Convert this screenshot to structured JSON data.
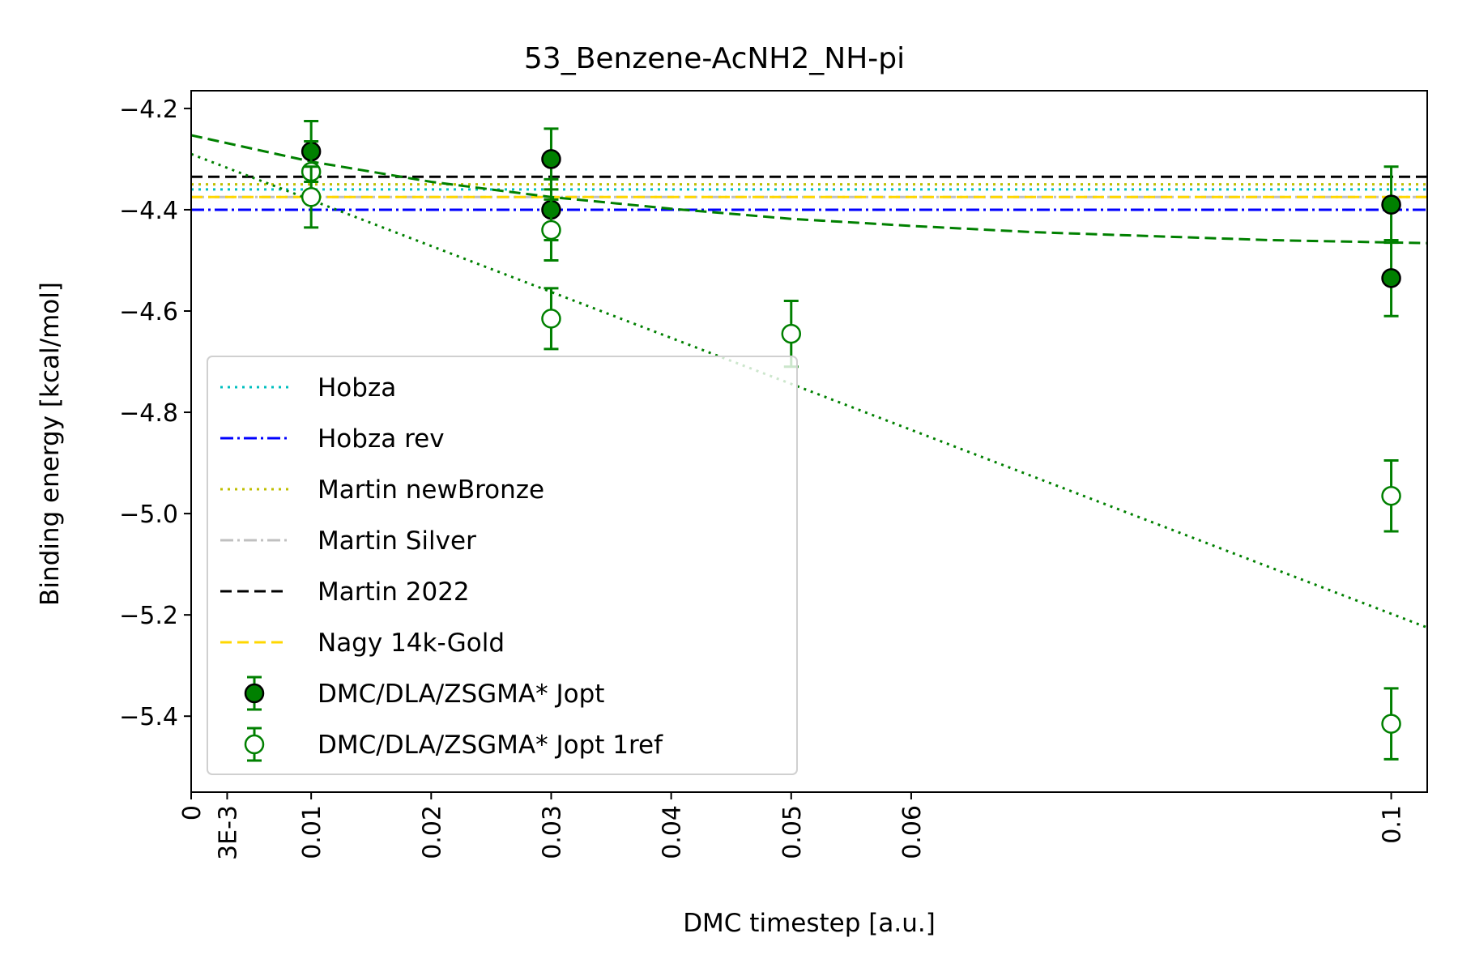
{
  "chart_data": {
    "type": "scatter",
    "title": "53_Benzene-AcNH2_NH-pi",
    "xlabel": "DMC timestep [a.u.]",
    "ylabel": "Binding energy [kcal/mol]",
    "xlim": [
      0,
      0.103
    ],
    "ylim": [
      -5.55,
      -4.165
    ],
    "x_ticks": [
      {
        "value": 0,
        "label": "0"
      },
      {
        "value": 0.003,
        "label": "3E-3"
      },
      {
        "value": 0.01,
        "label": "0.01"
      },
      {
        "value": 0.02,
        "label": "0.02"
      },
      {
        "value": 0.03,
        "label": "0.03"
      },
      {
        "value": 0.04,
        "label": "0.04"
      },
      {
        "value": 0.05,
        "label": "0.05"
      },
      {
        "value": 0.06,
        "label": "0.06"
      },
      {
        "value": 0.1,
        "label": "0.1"
      }
    ],
    "y_ticks": [
      {
        "value": -4.2,
        "label": "−4.2"
      },
      {
        "value": -4.4,
        "label": "−4.4"
      },
      {
        "value": -4.6,
        "label": "−4.6"
      },
      {
        "value": -4.8,
        "label": "−4.8"
      },
      {
        "value": -5.0,
        "label": "−5.0"
      },
      {
        "value": -5.2,
        "label": "−5.2"
      },
      {
        "value": -5.4,
        "label": "−5.4"
      }
    ],
    "grid": false,
    "legend_position": "lower-left",
    "reference_lines": [
      {
        "name": "Hobza",
        "value": -4.36,
        "color": "#00bfbf",
        "style": "dotted"
      },
      {
        "name": "Hobza rev",
        "value": -4.4,
        "color": "#0000ff",
        "style": "dashdot"
      },
      {
        "name": "Martin newBronze",
        "value": -4.35,
        "color": "#bfbf00",
        "style": "dotted"
      },
      {
        "name": "Martin Silver",
        "value": -4.375,
        "color": "#c0c0c0",
        "style": "dashdot"
      },
      {
        "name": "Martin 2022",
        "value": -4.335,
        "color": "#000000",
        "style": "dashed"
      },
      {
        "name": "Nagy 14k-Gold",
        "value": -4.375,
        "color": "#ffd700",
        "style": "dashed"
      }
    ],
    "series": [
      {
        "name": "DMC/DLA/ZSGMA* Jopt",
        "marker": "filled-circle",
        "color": "#008000",
        "points": [
          {
            "x": 0.01,
            "y": -4.285,
            "err": 0.06
          },
          {
            "x": 0.03,
            "y": -4.3,
            "err": 0.06
          },
          {
            "x": 0.03,
            "y": -4.4,
            "err": 0.06
          },
          {
            "x": 0.1,
            "y": -4.39,
            "err": 0.075
          },
          {
            "x": 0.1,
            "y": -4.535,
            "err": 0.075
          }
        ]
      },
      {
        "name": "DMC/DLA/ZSGMA* Jopt 1ref",
        "marker": "open-circle",
        "color": "#008000",
        "points": [
          {
            "x": 0.01,
            "y": -4.325,
            "err": 0.06
          },
          {
            "x": 0.01,
            "y": -4.375,
            "err": 0.06
          },
          {
            "x": 0.03,
            "y": -4.44,
            "err": 0.06
          },
          {
            "x": 0.03,
            "y": -4.615,
            "err": 0.06
          },
          {
            "x": 0.05,
            "y": -4.645,
            "err": 0.065
          },
          {
            "x": 0.1,
            "y": -4.965,
            "err": 0.07
          },
          {
            "x": 0.1,
            "y": -5.415,
            "err": 0.07
          }
        ]
      }
    ],
    "fit_lines": [
      {
        "style": "dashed",
        "color": "#008000",
        "points": [
          [
            0,
            -4.253
          ],
          [
            0.01,
            -4.305
          ],
          [
            0.02,
            -4.345
          ],
          [
            0.03,
            -4.375
          ],
          [
            0.04,
            -4.398
          ],
          [
            0.05,
            -4.418
          ],
          [
            0.06,
            -4.432
          ],
          [
            0.07,
            -4.444
          ],
          [
            0.08,
            -4.452
          ],
          [
            0.09,
            -4.46
          ],
          [
            0.103,
            -4.466
          ]
        ]
      },
      {
        "style": "dotted",
        "color": "#008000",
        "points": [
          [
            0,
            -4.29
          ],
          [
            0.103,
            -5.225
          ]
        ]
      }
    ]
  }
}
